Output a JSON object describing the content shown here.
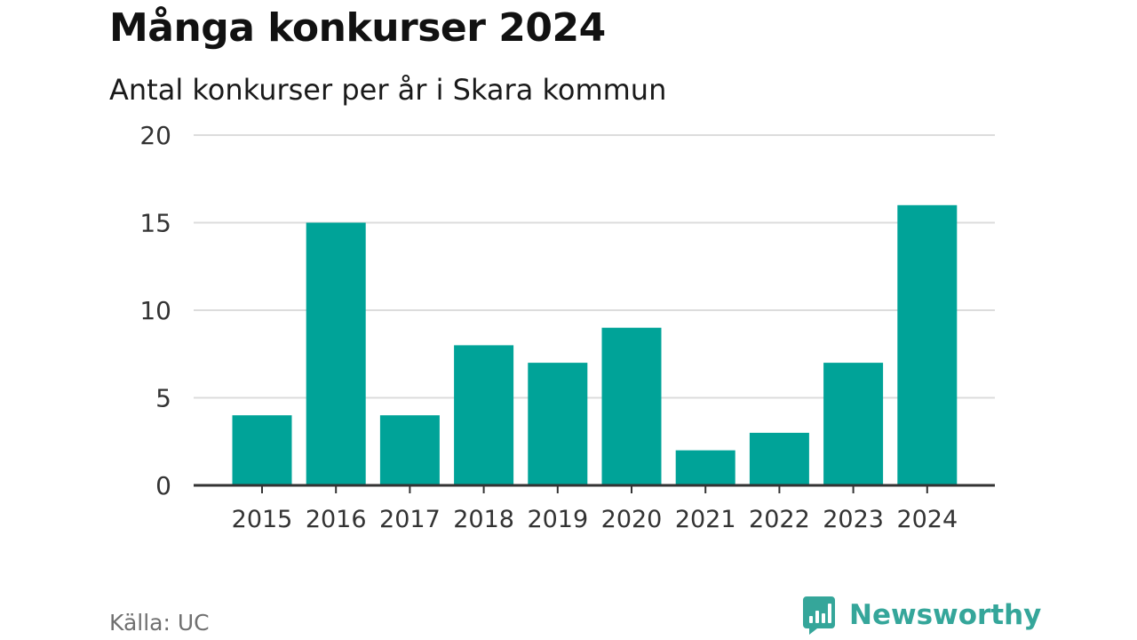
{
  "title": "Många konkurser 2024",
  "subtitle": "Antal konkurser per år i Skara kommun",
  "source": "Källa: UC",
  "brand": {
    "name": "Newsworthy",
    "icon": "newsworthy-logo-icon",
    "color": "#35a69a"
  },
  "colors": {
    "bar": "#00a398",
    "grid": "#dcdcdc",
    "axis": "#333333",
    "text": "#333333"
  },
  "chart_data": {
    "type": "bar",
    "categories": [
      "2015",
      "2016",
      "2017",
      "2018",
      "2019",
      "2020",
      "2021",
      "2022",
      "2023",
      "2024"
    ],
    "values": [
      4,
      15,
      4,
      8,
      7,
      9,
      2,
      3,
      7,
      16
    ],
    "ylim": [
      0,
      20
    ],
    "yticks": [
      "0",
      "5",
      "10",
      "15",
      "20"
    ],
    "title": "Många konkurser 2024",
    "subtitle": "Antal konkurser per år i Skara kommun",
    "xlabel": "",
    "ylabel": "",
    "grid": true,
    "legend": "none"
  }
}
